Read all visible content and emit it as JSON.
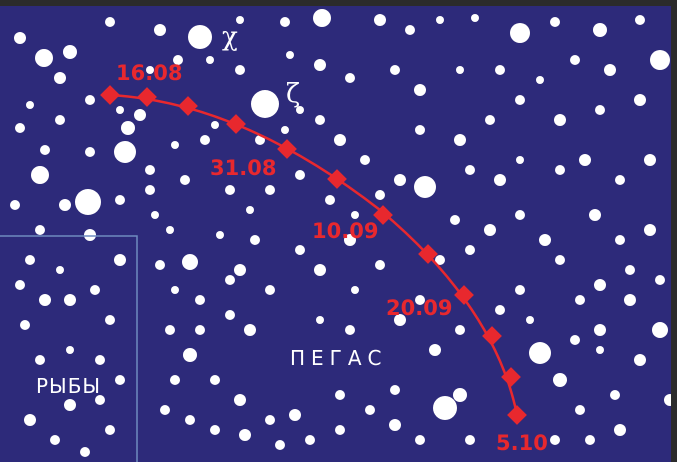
{
  "background_color": "#2d2a7a",
  "track_color": "#e8282e",
  "star_color": "#ffffff",
  "boundary_color": "#6f8bc0",
  "constellations": {
    "pegasus": "ПЕГАС",
    "pisces": "РЫБЫ"
  },
  "greek_stars": {
    "chi": "χ",
    "zeta": "ζ"
  },
  "track_dates": [
    "16.08",
    "31.08",
    "10.09",
    "20.09",
    "5.10"
  ]
}
